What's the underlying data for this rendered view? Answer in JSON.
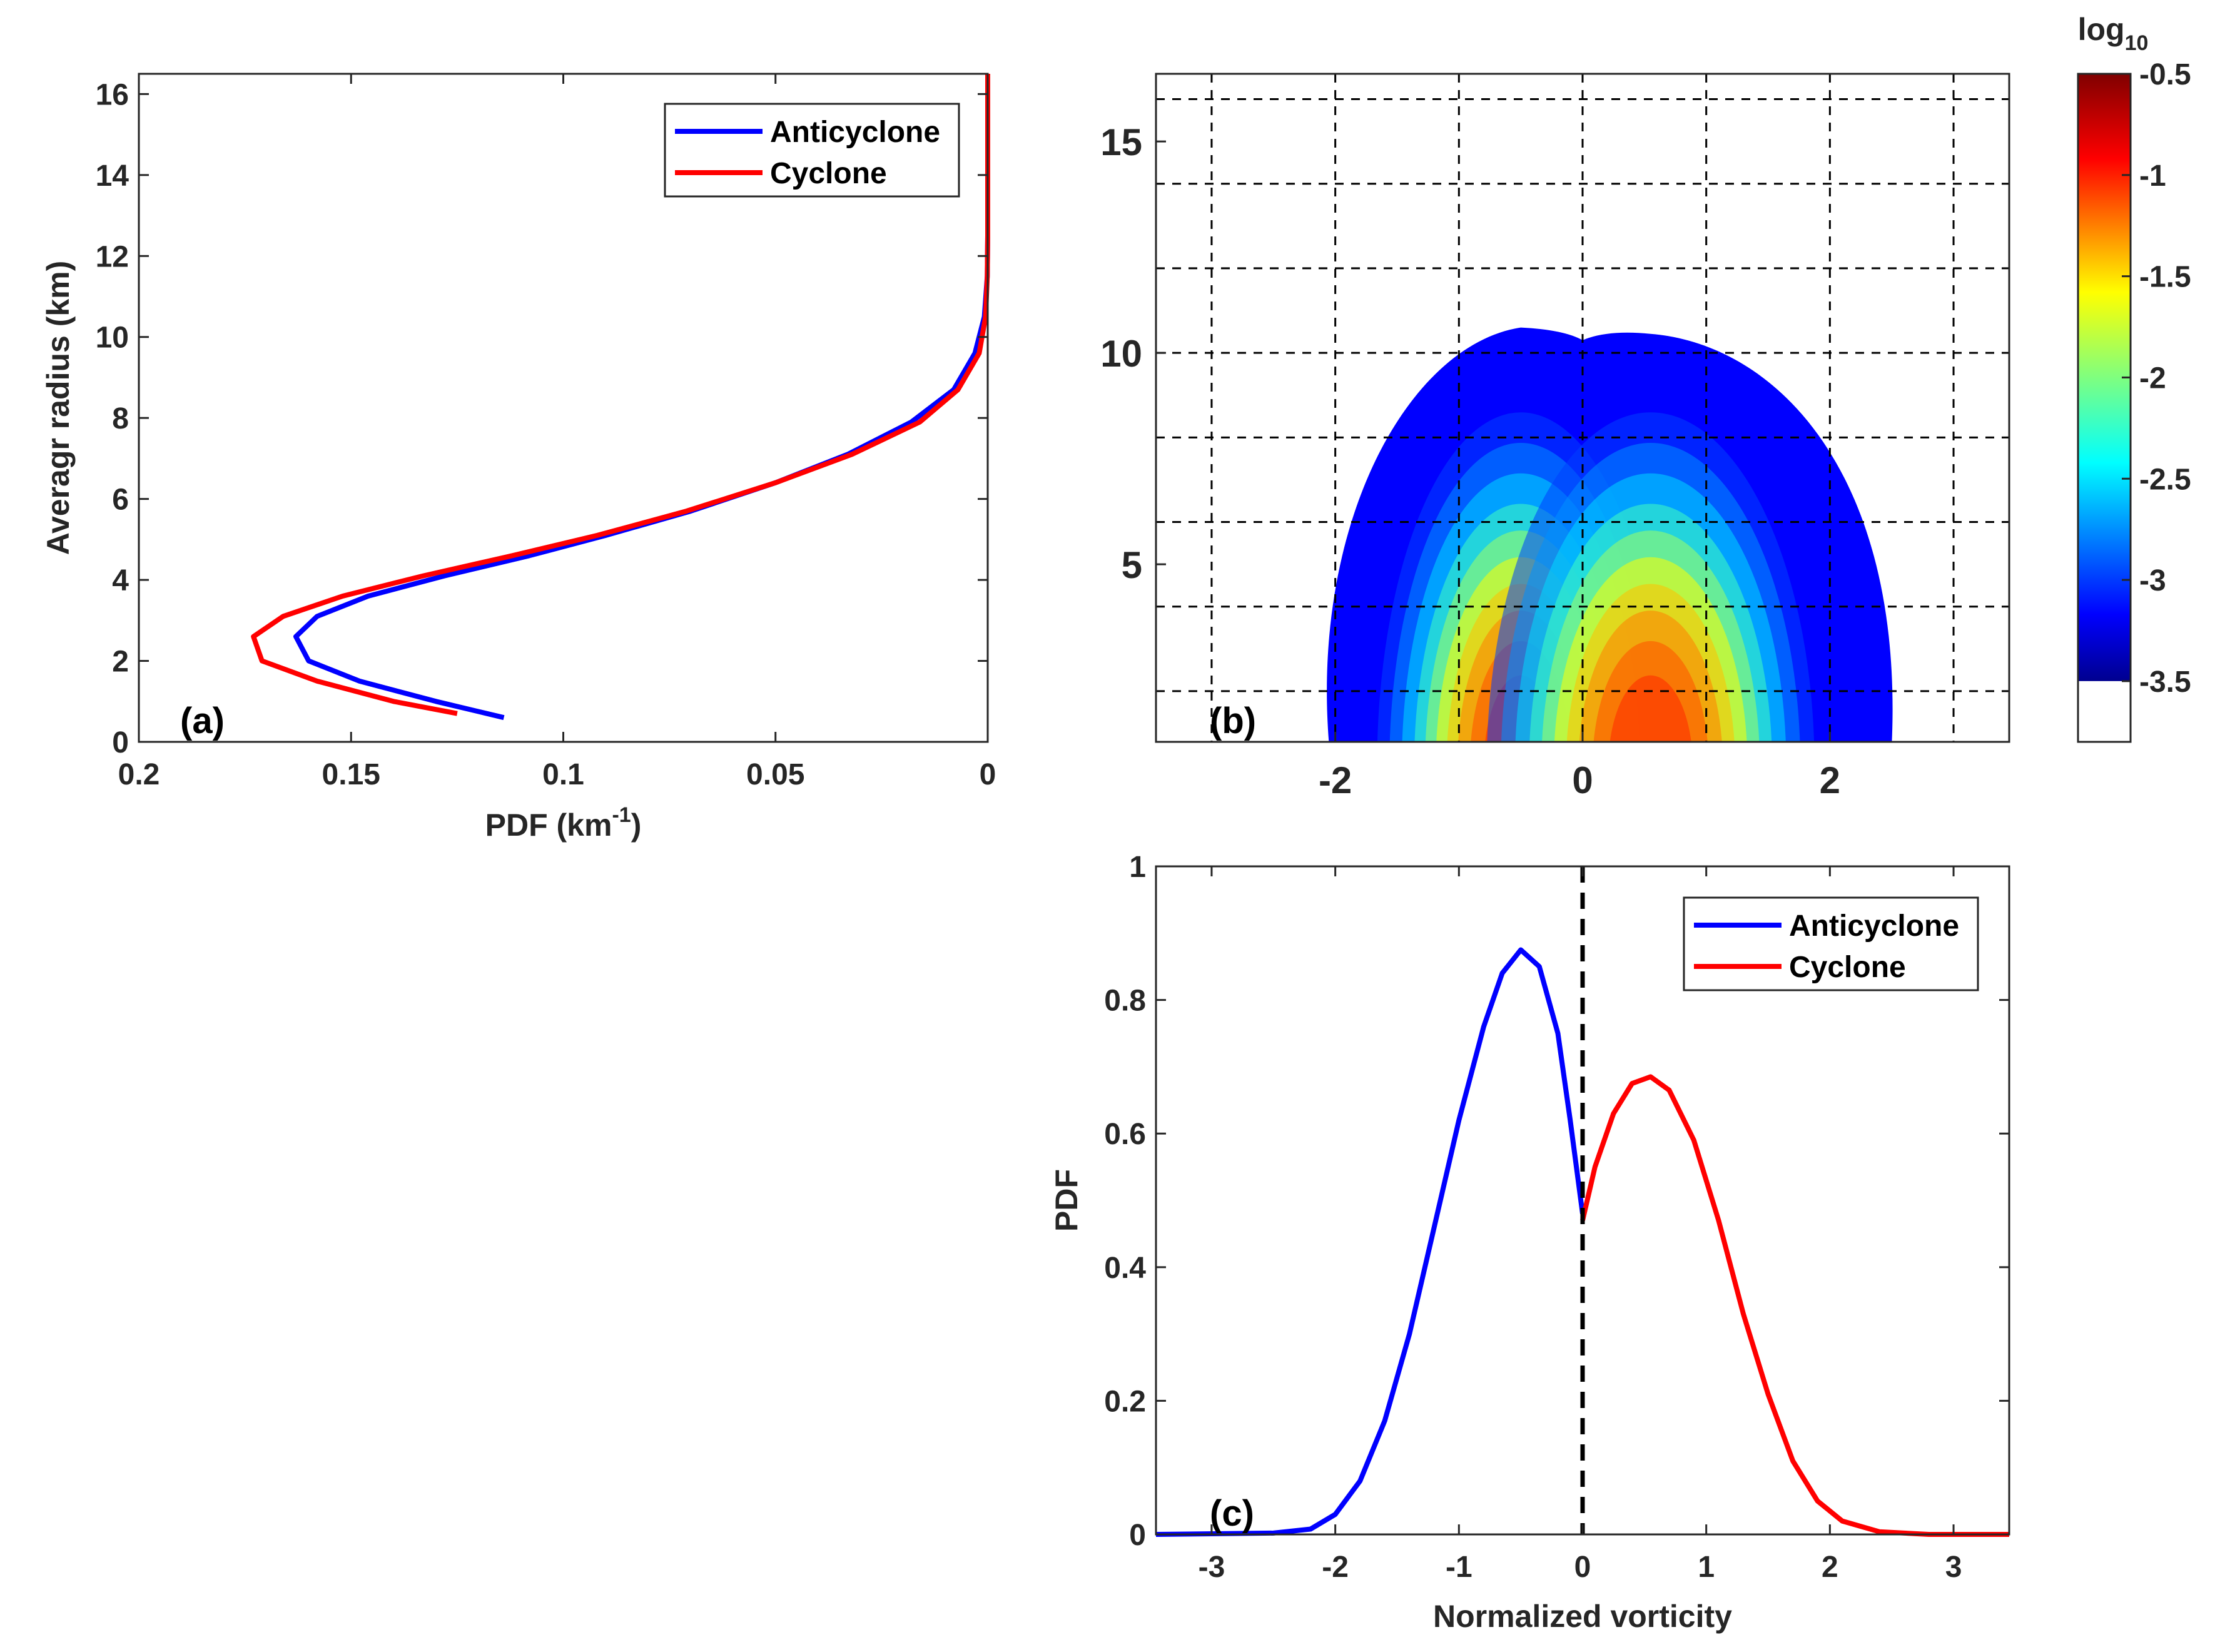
{
  "colors": {
    "anticyclone": "#0000ff",
    "cyclone": "#ff0000",
    "axis": "#262626"
  },
  "chart_data": [
    {
      "id": "a",
      "panel_label": "(a)",
      "type": "line",
      "xlabel_main": "PDF (km",
      "xlabel_sup": "-1",
      "xlabel_end": ")",
      "ylabel": "Averagr radius (km)",
      "xlim": [
        0.2,
        0
      ],
      "x_reversed": true,
      "ylim": [
        0,
        16.5
      ],
      "xticks": [
        0.2,
        0.15,
        0.1,
        0.05,
        0
      ],
      "xtick_labels": [
        "0.2",
        "0.15",
        "0.1",
        "0.05",
        "0"
      ],
      "yticks": [
        0,
        2,
        4,
        6,
        8,
        10,
        12,
        14,
        16
      ],
      "ytick_labels": [
        "0",
        "2",
        "4",
        "6",
        "8",
        "10",
        "12",
        "14",
        "16"
      ],
      "legend": {
        "position": "top-right",
        "entries": [
          "Anticyclone",
          "Cyclone"
        ]
      },
      "series": [
        {
          "name": "Anticyclone",
          "color": "#0000ff",
          "points": [
            [
              0.114,
              0.6
            ],
            [
              0.13,
              1.0
            ],
            [
              0.148,
              1.5
            ],
            [
              0.16,
              2.0
            ],
            [
              0.163,
              2.6
            ],
            [
              0.158,
              3.1
            ],
            [
              0.146,
              3.6
            ],
            [
              0.128,
              4.1
            ],
            [
              0.108,
              4.6
            ],
            [
              0.09,
              5.1
            ],
            [
              0.07,
              5.7
            ],
            [
              0.05,
              6.4
            ],
            [
              0.033,
              7.1
            ],
            [
              0.018,
              7.9
            ],
            [
              0.008,
              8.7
            ],
            [
              0.003,
              9.6
            ],
            [
              0.0008,
              10.5
            ],
            [
              0.0001,
              11.5
            ],
            [
              0,
              12.5
            ],
            [
              0,
              16.5
            ]
          ]
        },
        {
          "name": "Cyclone",
          "color": "#ff0000",
          "points": [
            [
              0.125,
              0.7
            ],
            [
              0.14,
              1.0
            ],
            [
              0.158,
              1.5
            ],
            [
              0.171,
              2.0
            ],
            [
              0.173,
              2.6
            ],
            [
              0.166,
              3.1
            ],
            [
              0.152,
              3.6
            ],
            [
              0.133,
              4.1
            ],
            [
              0.112,
              4.6
            ],
            [
              0.092,
              5.1
            ],
            [
              0.071,
              5.7
            ],
            [
              0.05,
              6.4
            ],
            [
              0.032,
              7.1
            ],
            [
              0.016,
              7.9
            ],
            [
              0.007,
              8.7
            ],
            [
              0.002,
              9.6
            ],
            [
              0.0005,
              10.5
            ],
            [
              0.0001,
              11.5
            ],
            [
              0,
              12.5
            ],
            [
              0,
              16.5
            ]
          ]
        }
      ]
    },
    {
      "id": "b",
      "panel_label": "(b)",
      "type": "heatmap",
      "xlim": [
        -3.45,
        3.45
      ],
      "ylim": [
        0.8,
        16.6
      ],
      "xticks": [
        -2,
        0,
        2
      ],
      "xtick_labels": [
        "-2",
        "0",
        "2"
      ],
      "yticks": [
        5,
        10,
        15
      ],
      "ytick_labels": [
        "5",
        "10",
        "15"
      ],
      "grid": true,
      "grid_x": [
        -3,
        -2,
        -1,
        0,
        1,
        2,
        3
      ],
      "grid_y": [
        2,
        4,
        6,
        8,
        10,
        12,
        14,
        16
      ],
      "colorbar": {
        "title": "log",
        "title_sub": "10",
        "range": [
          -3.8,
          -0.5
        ],
        "ticks": [
          -0.5,
          -1,
          -1.5,
          -2,
          -2.5,
          -3,
          -3.5
        ],
        "tick_labels": [
          "-0.5",
          "-1",
          "-1.5",
          "-2",
          "-2.5",
          "-3",
          "-3.5"
        ],
        "below_range_color": "#ffffff",
        "colormap": "jet"
      },
      "peaks": [
        {
          "x": -0.5,
          "y": 2.6,
          "log10_value": -0.6
        },
        {
          "x": 0.55,
          "y": 2.4,
          "log10_value": -0.7
        }
      ],
      "contour_top_y": 10.6
    },
    {
      "id": "c",
      "panel_label": "(c)",
      "type": "line",
      "xlabel": "Normalized vorticity",
      "ylabel": "PDF",
      "xlim": [
        -3.45,
        3.45
      ],
      "ylim": [
        0,
        1
      ],
      "xticks": [
        -3,
        -2,
        -1,
        0,
        1,
        2,
        3
      ],
      "xtick_labels": [
        "-3",
        "-2",
        "-1",
        "0",
        "1",
        "2",
        "3"
      ],
      "yticks": [
        0,
        0.2,
        0.4,
        0.6,
        0.8,
        1
      ],
      "ytick_labels": [
        "0",
        "0.2",
        "0.4",
        "0.6",
        "0.8",
        "1"
      ],
      "vline_x": 0,
      "legend": {
        "position": "top-right",
        "entries": [
          "Anticyclone",
          "Cyclone"
        ]
      },
      "series": [
        {
          "name": "Anticyclone",
          "color": "#0000ff",
          "points": [
            [
              -3.45,
              0.0
            ],
            [
              -2.5,
              0.002
            ],
            [
              -2.2,
              0.008
            ],
            [
              -2.0,
              0.03
            ],
            [
              -1.8,
              0.08
            ],
            [
              -1.6,
              0.17
            ],
            [
              -1.4,
              0.3
            ],
            [
              -1.2,
              0.46
            ],
            [
              -1.0,
              0.62
            ],
            [
              -0.8,
              0.76
            ],
            [
              -0.65,
              0.84
            ],
            [
              -0.5,
              0.875
            ],
            [
              -0.35,
              0.85
            ],
            [
              -0.2,
              0.75
            ],
            [
              -0.1,
              0.62
            ],
            [
              0,
              0.48
            ]
          ]
        },
        {
          "name": "Cyclone",
          "color": "#ff0000",
          "points": [
            [
              0,
              0.47
            ],
            [
              0.1,
              0.55
            ],
            [
              0.25,
              0.63
            ],
            [
              0.4,
              0.675
            ],
            [
              0.55,
              0.685
            ],
            [
              0.7,
              0.665
            ],
            [
              0.9,
              0.59
            ],
            [
              1.1,
              0.47
            ],
            [
              1.3,
              0.33
            ],
            [
              1.5,
              0.21
            ],
            [
              1.7,
              0.11
            ],
            [
              1.9,
              0.05
            ],
            [
              2.1,
              0.02
            ],
            [
              2.4,
              0.004
            ],
            [
              2.8,
              0.0
            ],
            [
              3.45,
              0.0
            ]
          ]
        }
      ]
    }
  ]
}
